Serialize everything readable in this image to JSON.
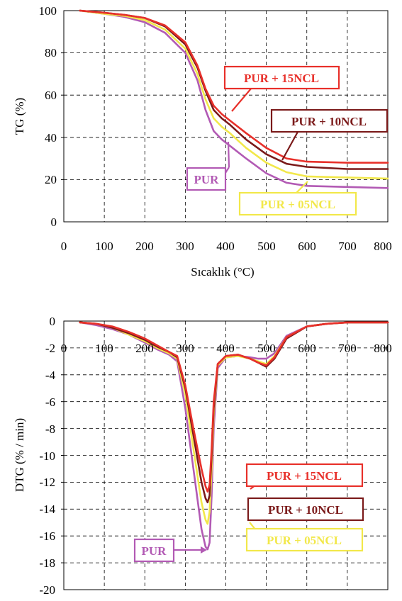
{
  "chart_data": [
    {
      "type": "line",
      "title": "",
      "xlabel": "Sıcaklık (°C)",
      "ylabel": "TG (%)",
      "xlim": [
        0,
        800
      ],
      "ylim": [
        0,
        100
      ],
      "x_ticks": [
        "0",
        "100",
        "200",
        "300",
        "400",
        "500",
        "600",
        "700",
        "800"
      ],
      "y_ticks": [
        "0",
        "20",
        "40",
        "60",
        "80",
        "100"
      ],
      "grid": true,
      "series": [
        {
          "name": "PUR + 15NCL",
          "color": "#e8302a",
          "x": [
            40,
            100,
            150,
            200,
            250,
            300,
            330,
            350,
            370,
            390,
            410,
            450,
            500,
            550,
            600,
            700,
            800
          ],
          "y": [
            100,
            99,
            98,
            96.5,
            93,
            85,
            74,
            63,
            55,
            51,
            48,
            42,
            35,
            30,
            28.5,
            28,
            28
          ]
        },
        {
          "name": "PUR + 10NCL",
          "color": "#7b1a1a",
          "x": [
            40,
            100,
            150,
            200,
            250,
            300,
            330,
            350,
            370,
            390,
            410,
            450,
            500,
            550,
            600,
            700,
            800
          ],
          "y": [
            100,
            99,
            98,
            96.5,
            92.5,
            84,
            73,
            62,
            53,
            49,
            46,
            39,
            32,
            27.5,
            26,
            25,
            25
          ]
        },
        {
          "name": "PUR + 05NCL",
          "color": "#f2e84a",
          "x": [
            40,
            100,
            150,
            200,
            250,
            300,
            330,
            350,
            370,
            390,
            410,
            450,
            500,
            550,
            600,
            700,
            800
          ],
          "y": [
            100,
            98.5,
            97.5,
            95.5,
            91,
            82,
            70,
            58,
            49,
            45,
            42,
            35,
            28,
            23.5,
            21.5,
            21,
            20.5
          ]
        },
        {
          "name": "PUR",
          "color": "#b25ab4",
          "x": [
            40,
            100,
            150,
            200,
            250,
            300,
            330,
            350,
            370,
            390,
            410,
            450,
            500,
            550,
            600,
            700,
            800
          ],
          "y": [
            100,
            98.5,
            97,
            94.5,
            89.5,
            80,
            67,
            53,
            43,
            39,
            36,
            30,
            23,
            18.5,
            17,
            16.5,
            16
          ]
        }
      ],
      "annotations": [
        "PUR + 15NCL",
        "PUR + 10NCL",
        "PUR",
        "PUR + 05NCL"
      ]
    },
    {
      "type": "line",
      "title": "",
      "xlabel": "",
      "ylabel": "DTG (% / min)",
      "xlim": [
        0,
        800
      ],
      "ylim": [
        -20,
        0
      ],
      "x_ticks": [
        "0",
        "100",
        "200",
        "300",
        "400",
        "500",
        "600",
        "700",
        "800"
      ],
      "y_ticks": [
        "0",
        "-2",
        "-4",
        "-6",
        "-8",
        "-10",
        "-12",
        "-14",
        "-16",
        "-18",
        "-20"
      ],
      "grid": true,
      "series": [
        {
          "name": "PUR + 15NCL",
          "color": "#e8302a",
          "x": [
            40,
            80,
            120,
            160,
            200,
            230,
            260,
            280,
            300,
            320,
            340,
            350,
            355,
            360,
            365,
            370,
            380,
            400,
            430,
            460,
            480,
            500,
            520,
            550,
            600,
            650,
            700,
            800
          ],
          "y": [
            -0.1,
            -0.2,
            -0.4,
            -0.8,
            -1.3,
            -1.8,
            -2.3,
            -2.6,
            -4.8,
            -8,
            -11,
            -12.3,
            -12.7,
            -12.2,
            -9.5,
            -6,
            -3.2,
            -2.6,
            -2.5,
            -2.8,
            -3.1,
            -3.3,
            -2.7,
            -1.2,
            -0.4,
            -0.2,
            -0.1,
            -0.1
          ]
        },
        {
          "name": "PUR + 10NCL",
          "color": "#7b1a1a",
          "x": [
            40,
            80,
            120,
            160,
            200,
            230,
            260,
            280,
            300,
            320,
            340,
            350,
            355,
            360,
            365,
            370,
            380,
            400,
            430,
            460,
            480,
            500,
            520,
            550,
            600,
            650,
            700,
            800
          ],
          "y": [
            -0.1,
            -0.2,
            -0.5,
            -0.9,
            -1.4,
            -1.9,
            -2.3,
            -2.7,
            -5,
            -8.5,
            -12,
            -13.2,
            -13.5,
            -13,
            -10,
            -6.5,
            -3.2,
            -2.6,
            -2.5,
            -2.8,
            -3.1,
            -3.4,
            -2.8,
            -1.3,
            -0.4,
            -0.2,
            -0.1,
            -0.1
          ]
        },
        {
          "name": "PUR + 05NCL",
          "color": "#f2e84a",
          "x": [
            40,
            80,
            120,
            160,
            200,
            230,
            260,
            280,
            300,
            320,
            340,
            350,
            355,
            360,
            365,
            370,
            380,
            400,
            430,
            460,
            480,
            500,
            520,
            550,
            600,
            650,
            700,
            800
          ],
          "y": [
            -0.1,
            -0.2,
            -0.5,
            -1,
            -1.5,
            -2,
            -2.4,
            -2.8,
            -5.5,
            -9.5,
            -13.5,
            -14.8,
            -15.1,
            -14.2,
            -11,
            -7,
            -3.3,
            -2.7,
            -2.6,
            -2.8,
            -3.0,
            -3.2,
            -2.6,
            -1.2,
            -0.4,
            -0.2,
            -0.1,
            -0.1
          ]
        },
        {
          "name": "PUR",
          "color": "#b25ab4",
          "x": [
            40,
            80,
            120,
            160,
            200,
            230,
            260,
            280,
            300,
            320,
            340,
            350,
            355,
            360,
            365,
            370,
            380,
            400,
            430,
            460,
            480,
            500,
            520,
            550,
            600,
            650,
            700,
            800
          ],
          "y": [
            -0.1,
            -0.3,
            -0.6,
            -1,
            -1.6,
            -2.1,
            -2.5,
            -3.0,
            -6.5,
            -11,
            -15.5,
            -16.8,
            -17,
            -16.5,
            -13,
            -8,
            -3.5,
            -2.7,
            -2.6,
            -2.7,
            -2.8,
            -2.8,
            -2.4,
            -1.1,
            -0.4,
            -0.2,
            -0.1,
            -0.1
          ]
        }
      ],
      "annotations": [
        "PUR + 15NCL",
        "PUR + 10NCL",
        "PUR + 05NCL",
        "PUR"
      ]
    }
  ]
}
